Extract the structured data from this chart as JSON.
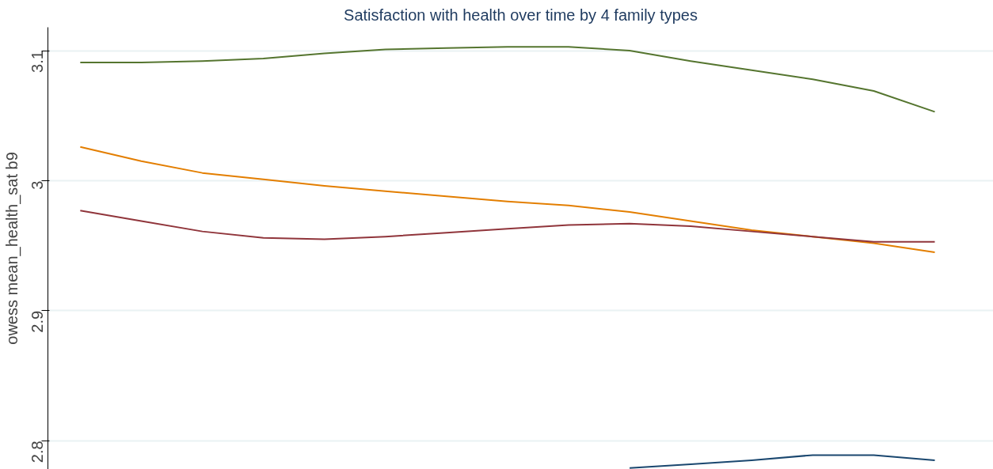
{
  "chart_data": {
    "type": "line",
    "title": "Satisfaction with health over time by 4 family types",
    "ylabel": "owess mean_health_sat b9",
    "categories": [
      null,
      null,
      null,
      null,
      null,
      null,
      null,
      null,
      null,
      null,
      null,
      null,
      null,
      null,
      null
    ],
    "series": [
      {
        "color": "#55752f",
        "values": [
          3.091,
          3.091,
          3.092,
          3.094,
          3.098,
          3.101,
          3.102,
          3.103,
          3.103,
          3.1,
          3.092,
          3.085,
          3.078,
          3.069,
          3.053
        ]
      },
      {
        "color": "#e37e00",
        "values": [
          3.026,
          3.015,
          3.006,
          3.001,
          2.996,
          2.992,
          2.988,
          2.984,
          2.981,
          2.976,
          2.969,
          2.962,
          2.957,
          2.952,
          2.945
        ]
      },
      {
        "color": "#90353b",
        "values": [
          2.977,
          2.969,
          2.961,
          2.956,
          2.955,
          2.957,
          2.96,
          2.963,
          2.966,
          2.967,
          2.965,
          2.961,
          2.957,
          2.953,
          2.953
        ]
      },
      {
        "color": "#1a476f",
        "values": [
          null,
          null,
          null,
          null,
          null,
          null,
          null,
          null,
          null,
          2.779,
          2.782,
          2.785,
          2.789,
          2.789,
          2.785
        ]
      }
    ],
    "ylim": [
      2.778,
      3.118
    ],
    "yticks": [
      2.8,
      2.9,
      3,
      3.1
    ],
    "grid": "y",
    "tick_labels": "y"
  }
}
